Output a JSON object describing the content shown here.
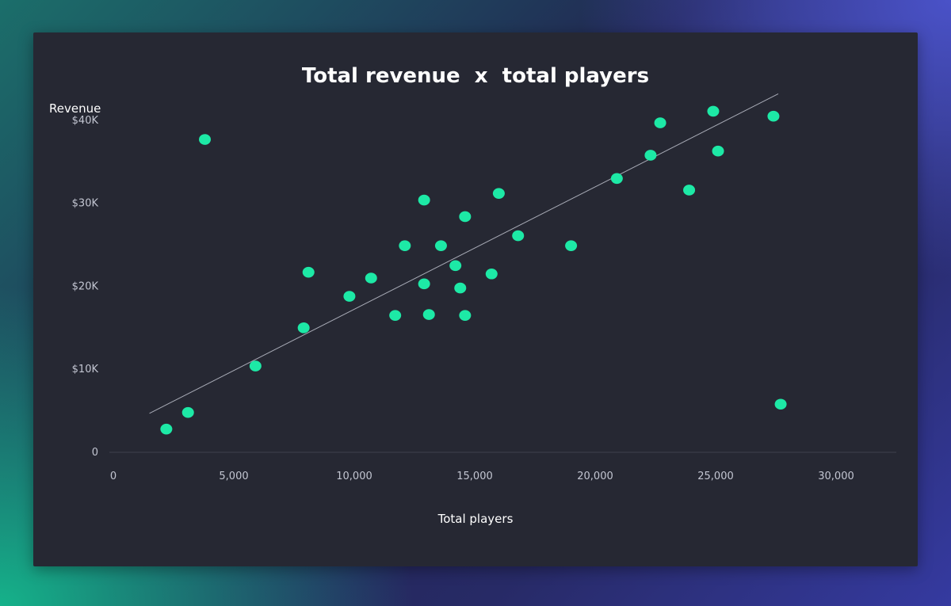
{
  "chart_data": {
    "type": "scatter",
    "title": "Total revenue  x  total players",
    "xlabel": "Total players",
    "ylabel": "Revenue",
    "xlim": [
      0,
      32500
    ],
    "ylim": [
      0,
      42000
    ],
    "x_ticks": [
      {
        "value": 0,
        "label": "0"
      },
      {
        "value": 5000,
        "label": "5,000"
      },
      {
        "value": 10000,
        "label": "10,000"
      },
      {
        "value": 15000,
        "label": "15,000"
      },
      {
        "value": 20000,
        "label": "20,000"
      },
      {
        "value": 25000,
        "label": "25,000"
      },
      {
        "value": 30000,
        "label": "30,000"
      }
    ],
    "y_ticks": [
      {
        "value": 0,
        "label": "0"
      },
      {
        "value": 10000,
        "label": "$10K"
      },
      {
        "value": 20000,
        "label": "$20K"
      },
      {
        "value": 30000,
        "label": "$30K"
      },
      {
        "value": 40000,
        "label": "$40K"
      }
    ],
    "grid": false,
    "point_color": "#1de9a6",
    "trendline_color": "#a8abb6",
    "trendline": {
      "x": [
        1500,
        27600
      ],
      "y": [
        4700,
        43200
      ]
    },
    "points": [
      {
        "x": 2200,
        "y": 2800
      },
      {
        "x": 3100,
        "y": 4800
      },
      {
        "x": 3800,
        "y": 37700
      },
      {
        "x": 5900,
        "y": 10400
      },
      {
        "x": 7900,
        "y": 15000
      },
      {
        "x": 8100,
        "y": 21700
      },
      {
        "x": 9800,
        "y": 18800
      },
      {
        "x": 10700,
        "y": 21000
      },
      {
        "x": 11700,
        "y": 16500
      },
      {
        "x": 12100,
        "y": 24900
      },
      {
        "x": 12900,
        "y": 20300
      },
      {
        "x": 12900,
        "y": 30400
      },
      {
        "x": 13100,
        "y": 16600
      },
      {
        "x": 13600,
        "y": 24900
      },
      {
        "x": 14200,
        "y": 22500
      },
      {
        "x": 14400,
        "y": 19800
      },
      {
        "x": 14600,
        "y": 16500
      },
      {
        "x": 14600,
        "y": 28400
      },
      {
        "x": 15700,
        "y": 21500
      },
      {
        "x": 16000,
        "y": 31200
      },
      {
        "x": 16800,
        "y": 26100
      },
      {
        "x": 19000,
        "y": 24900
      },
      {
        "x": 20900,
        "y": 33000
      },
      {
        "x": 22300,
        "y": 35800
      },
      {
        "x": 22700,
        "y": 39700
      },
      {
        "x": 23900,
        "y": 31600
      },
      {
        "x": 24900,
        "y": 41100
      },
      {
        "x": 25100,
        "y": 36300
      },
      {
        "x": 27400,
        "y": 40500
      },
      {
        "x": 27700,
        "y": 5800
      }
    ]
  }
}
